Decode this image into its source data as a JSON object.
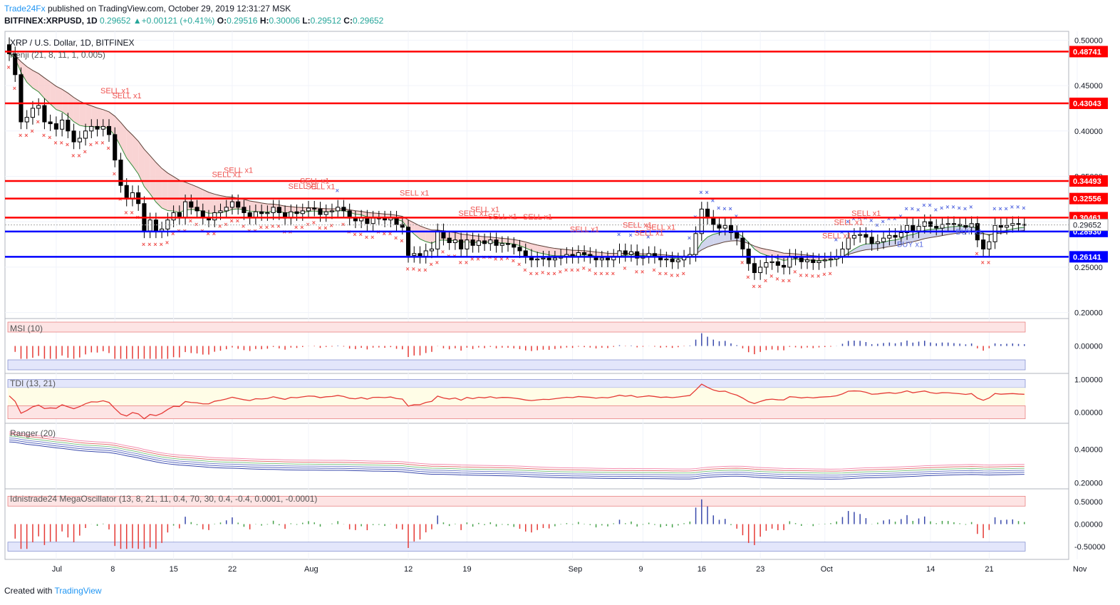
{
  "header": {
    "brand": "Trade24Fx",
    "published_text": "published on TradingView.com, October 29, 2019 12:31:27 MSK",
    "symbol": "BITFINEX:XRPUSD, 1D",
    "last": "0.29652",
    "change_arrow": "▲",
    "change": "+0.00121 (+0.41%)",
    "o_label": "O:",
    "o": "0.29516",
    "h_label": "H:",
    "h": "0.30006",
    "l_label": "L:",
    "l": "0.29512",
    "c_label": "C:",
    "c": "0.29652"
  },
  "footer": {
    "created_with": "Created with",
    "tradingview": "TradingView"
  },
  "chart_data": {
    "type": "candlestick",
    "title": "XRP / U.S. Dollar, 1D, BITFINEX",
    "indicator": "Kenji (21, 8, 11, 1, 0.005)",
    "price_axis_ticks": [
      "0.50000",
      "0.45000",
      "0.40000",
      "0.35000",
      "0.30000",
      "0.25000",
      "0.20000"
    ],
    "price_axis_values": [
      0.5,
      0.45,
      0.4,
      0.35,
      0.3,
      0.25,
      0.2
    ],
    "ylim": [
      0.195,
      0.505
    ],
    "x_ticks": [
      "Jul",
      "8",
      "15",
      "22",
      "Aug",
      "12",
      "19",
      "Sep",
      "9",
      "16",
      "23",
      "Oct",
      "14",
      "21",
      "Nov"
    ],
    "x_tick_index": [
      8,
      18,
      28,
      38,
      51,
      68,
      78,
      96,
      108,
      118,
      128,
      139,
      157,
      167,
      182
    ],
    "current_price": 0.29652,
    "current_price_label": "0.29652",
    "resistance_levels": [
      {
        "value": 0.48741,
        "label": "0.48741",
        "color": "#ff0000"
      },
      {
        "value": 0.43043,
        "label": "0.43043",
        "color": "#ff0000"
      },
      {
        "value": 0.34493,
        "label": "0.34493",
        "color": "#ff0000"
      },
      {
        "value": 0.32556,
        "label": "0.32556",
        "color": "#ff0000"
      },
      {
        "value": 0.30461,
        "label": "0.30461",
        "color": "#ff0000"
      }
    ],
    "support_levels": [
      {
        "value": 0.2893,
        "label": "0.28930",
        "color": "#0000ff"
      },
      {
        "value": 0.26141,
        "label": "0.26141",
        "color": "#0000ff"
      }
    ],
    "closes": [
      0.485,
      0.462,
      0.41,
      0.415,
      0.425,
      0.428,
      0.41,
      0.408,
      0.402,
      0.412,
      0.4,
      0.388,
      0.392,
      0.4,
      0.405,
      0.402,
      0.405,
      0.396,
      0.368,
      0.34,
      0.325,
      0.332,
      0.32,
      0.29,
      0.302,
      0.29,
      0.292,
      0.302,
      0.31,
      0.305,
      0.322,
      0.316,
      0.312,
      0.305,
      0.302,
      0.31,
      0.312,
      0.316,
      0.322,
      0.316,
      0.31,
      0.305,
      0.311,
      0.309,
      0.31,
      0.316,
      0.31,
      0.304,
      0.311,
      0.309,
      0.312,
      0.315,
      0.314,
      0.308,
      0.311,
      0.312,
      0.316,
      0.312,
      0.304,
      0.301,
      0.305,
      0.298,
      0.304,
      0.304,
      0.302,
      0.304,
      0.297,
      0.294,
      0.263,
      0.265,
      0.262,
      0.268,
      0.27,
      0.29,
      0.282,
      0.277,
      0.28,
      0.27,
      0.28,
      0.274,
      0.279,
      0.276,
      0.28,
      0.274,
      0.276,
      0.275,
      0.272,
      0.268,
      0.262,
      0.258,
      0.259,
      0.26,
      0.258,
      0.26,
      0.262,
      0.264,
      0.262,
      0.266,
      0.264,
      0.262,
      0.258,
      0.26,
      0.258,
      0.262,
      0.268,
      0.264,
      0.267,
      0.26,
      0.262,
      0.265,
      0.262,
      0.258,
      0.259,
      0.256,
      0.258,
      0.261,
      0.264,
      0.287,
      0.314,
      0.305,
      0.297,
      0.293,
      0.296,
      0.288,
      0.282,
      0.27,
      0.254,
      0.244,
      0.25,
      0.255,
      0.256,
      0.252,
      0.25,
      0.262,
      0.26,
      0.256,
      0.258,
      0.255,
      0.257,
      0.258,
      0.259,
      0.262,
      0.27,
      0.282,
      0.285,
      0.286,
      0.283,
      0.276,
      0.278,
      0.282,
      0.285,
      0.283,
      0.288,
      0.296,
      0.29,
      0.295,
      0.3,
      0.295,
      0.293,
      0.297,
      0.298,
      0.297,
      0.296,
      0.294,
      0.298,
      0.28,
      0.27,
      0.278,
      0.296,
      0.294,
      0.296,
      0.298,
      0.297,
      0.2965
    ],
    "sell_signals": [
      "SELL x1",
      "SELL x1",
      "SELL x1",
      "SELL x1",
      "SELL x1",
      "SELL x1",
      "SELL x1",
      "SELL x1",
      "SELL x1",
      "SELL x1",
      "SELL x1",
      "SELL x1",
      "SELL x1",
      "SELL x1",
      "SELL x1",
      "SELL x1",
      "SELL x1",
      "SELL x1",
      "SELL x1"
    ],
    "buy_signals": [
      "BUY x1",
      "BUY x1"
    ],
    "panels": [
      {
        "name": "MSI (10)",
        "ticks": [
          "0.00000"
        ]
      },
      {
        "name": "TDI (13, 21)",
        "ticks": [
          "1.00000",
          "0.00000"
        ]
      },
      {
        "name": "Ranger (20)",
        "ticks": [
          "0.40000",
          "0.20000"
        ]
      },
      {
        "name": "Idnistrade24 MegaOscillator (13, 8, 21, 11, 0.4, 70, 30, 0.4, -0.4, 0.0001, -0.0001)",
        "ticks": [
          "0.50000",
          "0.00000",
          "-0.50000"
        ]
      }
    ],
    "colors": {
      "up": "#ffffff",
      "down": "#000000",
      "sell": "#ef5350",
      "buy": "#5b6ee1",
      "cloud_bear": "#f8c9c9",
      "cloud_bull": "#c8e6c9"
    }
  }
}
